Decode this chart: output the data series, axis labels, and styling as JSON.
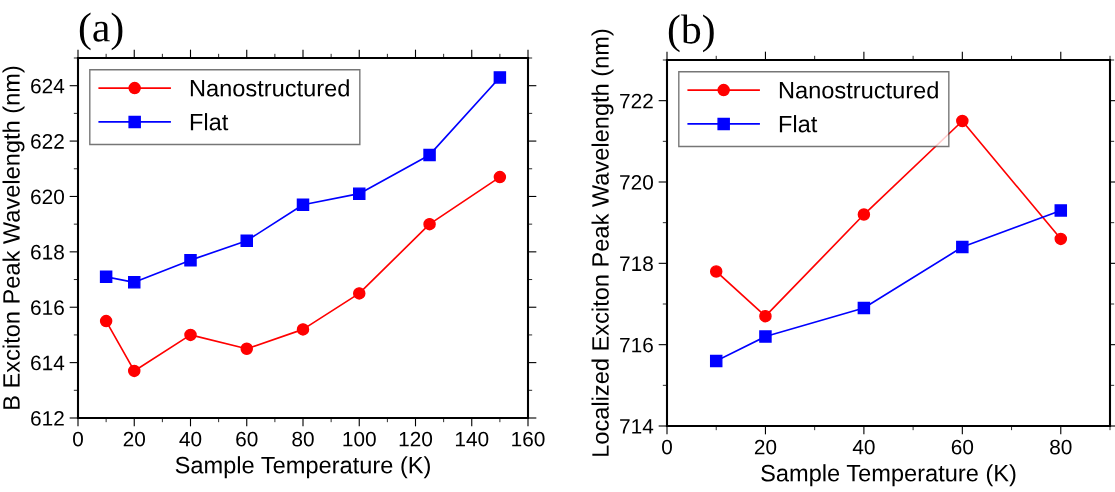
{
  "chart_data": [
    {
      "type": "line",
      "title": "(a)",
      "xlabel": "Sample Temperature (K)",
      "ylabel": "B Exciton Peak Wavelength (nm)",
      "x": [
        10,
        20,
        40,
        60,
        80,
        100,
        125,
        150
      ],
      "series": [
        {
          "name": "Nanostructured",
          "color": "#ff0000",
          "marker": "circle",
          "values": [
            615.5,
            613.7,
            615.0,
            614.5,
            615.2,
            616.5,
            619.0,
            620.7
          ]
        },
        {
          "name": "Flat",
          "color": "#0000ff",
          "marker": "square",
          "values": [
            617.1,
            616.9,
            617.7,
            618.4,
            619.7,
            620.1,
            621.5,
            624.3
          ]
        }
      ],
      "xlim": [
        0,
        160
      ],
      "xticks": [
        0,
        20,
        40,
        60,
        80,
        100,
        120,
        140,
        160
      ],
      "ylim": [
        612,
        625
      ],
      "yticks": [
        612,
        614,
        616,
        618,
        620,
        622,
        624
      ],
      "legend": "top left",
      "grid": false,
      "line_style": "solid"
    },
    {
      "type": "line",
      "title": "(b)",
      "xlabel": "Sample Temperature (K)",
      "ylabel": "Localized Exciton Peak Wavelength (nm)",
      "x": [
        10,
        20,
        40,
        60,
        80
      ],
      "series": [
        {
          "name": "Nanostructured",
          "color": "#ff0000",
          "marker": "circle",
          "values": [
            717.8,
            716.7,
            719.2,
            721.5,
            718.6
          ]
        },
        {
          "name": "Flat",
          "color": "#0000ff",
          "marker": "square",
          "values": [
            715.6,
            716.2,
            716.9,
            718.4,
            719.3
          ]
        }
      ],
      "xlim": [
        0,
        90
      ],
      "xticks": [
        0,
        20,
        40,
        60,
        80
      ],
      "ylim": [
        714,
        723
      ],
      "yticks": [
        714,
        716,
        718,
        720,
        722
      ],
      "legend": "top left",
      "grid": false,
      "line_style": "solid"
    }
  ]
}
